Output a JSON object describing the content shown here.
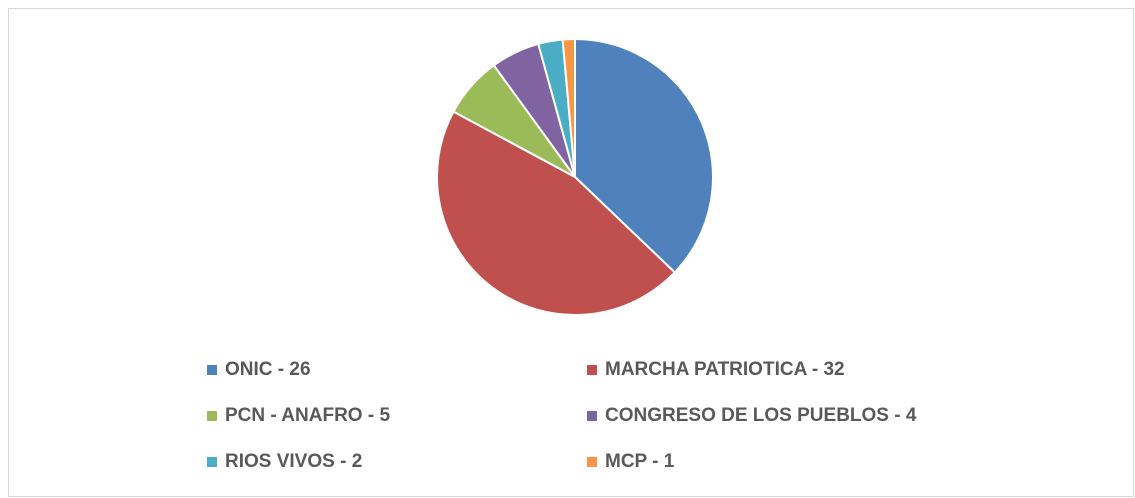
{
  "chart_data": {
    "type": "pie",
    "categories": [
      "ONIC - 26",
      "MARCHA PATRIOTICA - 32",
      "PCN - ANAFRO - 5",
      "CONGRESO DE LOS PUEBLOS - 4",
      "RIOS VIVOS - 2",
      "MCP - 1"
    ],
    "values": [
      26,
      32,
      5,
      4,
      2,
      1
    ],
    "colors": [
      "#4f81bd",
      "#c0504d",
      "#9bbb59",
      "#8064a2",
      "#4bacc6",
      "#f79646"
    ],
    "legend": "bottom"
  }
}
